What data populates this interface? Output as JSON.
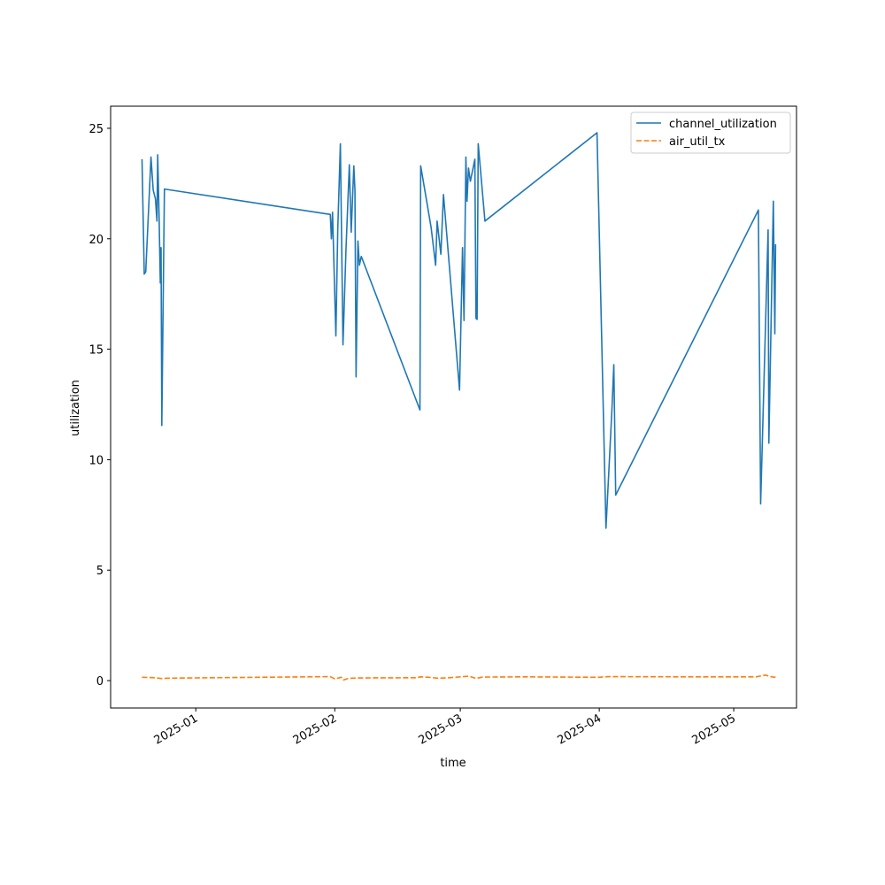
{
  "chart_data": {
    "type": "line",
    "title": "",
    "xlabel": "time",
    "ylabel": "utilization",
    "xlim": [
      "2024-12-13",
      "2025-05-15"
    ],
    "ylim": [
      -1.24,
      26.0
    ],
    "x_ticks": [
      {
        "date": "2025-01-01",
        "label": "2025-01"
      },
      {
        "date": "2025-02-01",
        "label": "2025-02"
      },
      {
        "date": "2025-03-01",
        "label": "2025-03"
      },
      {
        "date": "2025-04-01",
        "label": "2025-04"
      },
      {
        "date": "2025-05-01",
        "label": "2025-05"
      }
    ],
    "y_ticks": [
      0,
      5,
      10,
      15,
      20,
      25
    ],
    "grid": false,
    "legend": "top-right",
    "series": [
      {
        "name": "channel_utilization",
        "color": "#1f77b4",
        "style": "solid",
        "points": [
          [
            "2024-12-20T00:00",
            23.6
          ],
          [
            "2024-12-20T12:00",
            18.4
          ],
          [
            "2024-12-20T20:00",
            18.5
          ],
          [
            "2024-12-22T00:00",
            23.7
          ],
          [
            "2024-12-22T12:00",
            22.2
          ],
          [
            "2024-12-23T00:00",
            21.8
          ],
          [
            "2024-12-23T08:00",
            20.8
          ],
          [
            "2024-12-23T12:00",
            23.8
          ],
          [
            "2024-12-23T20:00",
            20.8
          ],
          [
            "2024-12-24T02:00",
            18.0
          ],
          [
            "2024-12-24T06:00",
            19.6
          ],
          [
            "2024-12-24T10:00",
            11.55
          ],
          [
            "2024-12-25T00:00",
            22.25
          ],
          [
            "2025-01-31T00:00",
            21.1
          ],
          [
            "2025-01-31T06:00",
            20.0
          ],
          [
            "2025-01-31T12:00",
            21.2
          ],
          [
            "2025-02-01T06:00",
            15.6
          ],
          [
            "2025-02-01T16:00",
            20.4
          ],
          [
            "2025-02-02T06:00",
            24.3
          ],
          [
            "2025-02-02T20:00",
            15.2
          ],
          [
            "2025-02-03T12:00",
            19.5
          ],
          [
            "2025-02-04T06:00",
            23.35
          ],
          [
            "2025-02-04T16:00",
            20.3
          ],
          [
            "2025-02-05T06:00",
            23.3
          ],
          [
            "2025-02-05T12:00",
            22.2
          ],
          [
            "2025-02-05T18:00",
            13.75
          ],
          [
            "2025-02-06T04:00",
            19.9
          ],
          [
            "2025-02-06T12:00",
            18.8
          ],
          [
            "2025-02-06T22:00",
            19.2
          ],
          [
            "2025-02-20T00:00",
            12.25
          ],
          [
            "2025-02-20T04:00",
            23.3
          ],
          [
            "2025-02-22T12:00",
            20.5
          ],
          [
            "2025-02-23T12:00",
            18.8
          ],
          [
            "2025-02-23T20:00",
            20.8
          ],
          [
            "2025-02-24T16:00",
            19.3
          ],
          [
            "2025-02-25T06:00",
            22.0
          ],
          [
            "2025-02-28T20:00",
            13.15
          ],
          [
            "2025-03-01T12:00",
            19.6
          ],
          [
            "2025-03-01T20:00",
            16.3
          ],
          [
            "2025-03-02T06:00",
            23.7
          ],
          [
            "2025-03-02T12:00",
            21.7
          ],
          [
            "2025-03-02T20:00",
            23.2
          ],
          [
            "2025-03-03T06:00",
            22.6
          ],
          [
            "2025-03-04T06:00",
            23.6
          ],
          [
            "2025-03-04T12:00",
            16.4
          ],
          [
            "2025-03-04T18:00",
            16.35
          ],
          [
            "2025-03-05T00:00",
            24.3
          ],
          [
            "2025-03-06T12:00",
            20.8
          ],
          [
            "2025-03-31T12:00",
            24.8
          ],
          [
            "2025-04-02T12:00",
            6.9
          ],
          [
            "2025-04-03T20:00",
            12.3
          ],
          [
            "2025-04-04T06:00",
            14.3
          ],
          [
            "2025-04-04T16:00",
            8.4
          ],
          [
            "2025-05-06T12:00",
            21.3
          ],
          [
            "2025-05-07T00:00",
            8.0
          ],
          [
            "2025-05-08T16:00",
            20.4
          ],
          [
            "2025-05-08T20:00",
            10.75
          ],
          [
            "2025-05-09T20:00",
            21.7
          ],
          [
            "2025-05-10T04:00",
            15.7
          ],
          [
            "2025-05-10T08:00",
            19.75
          ]
        ]
      },
      {
        "name": "air_util_tx",
        "color": "#ff7f0e",
        "style": "dashed",
        "points": [
          [
            "2024-12-20T00:00",
            0.15
          ],
          [
            "2024-12-23T00:00",
            0.13
          ],
          [
            "2024-12-24T12:00",
            0.09
          ],
          [
            "2024-12-25T12:00",
            0.11
          ],
          [
            "2025-01-31T00:00",
            0.18
          ],
          [
            "2025-02-01T00:00",
            0.08
          ],
          [
            "2025-02-02T12:00",
            0.15
          ],
          [
            "2025-02-03T00:00",
            0.03
          ],
          [
            "2025-02-04T00:00",
            0.1
          ],
          [
            "2025-02-06T00:00",
            0.12
          ],
          [
            "2025-02-19T12:00",
            0.13
          ],
          [
            "2025-02-20T00:00",
            0.17
          ],
          [
            "2025-02-22T00:00",
            0.15
          ],
          [
            "2025-02-24T00:00",
            0.11
          ],
          [
            "2025-02-26T00:00",
            0.12
          ],
          [
            "2025-03-01T00:00",
            0.17
          ],
          [
            "2025-03-03T00:00",
            0.2
          ],
          [
            "2025-03-04T12:00",
            0.1
          ],
          [
            "2025-03-06T00:00",
            0.16
          ],
          [
            "2025-03-15T00:00",
            0.17
          ],
          [
            "2025-04-01T00:00",
            0.15
          ],
          [
            "2025-04-03T00:00",
            0.18
          ],
          [
            "2025-04-20T00:00",
            0.17
          ],
          [
            "2025-05-06T00:00",
            0.17
          ],
          [
            "2025-05-08T00:00",
            0.25
          ],
          [
            "2025-05-09T12:00",
            0.17
          ],
          [
            "2025-05-10T08:00",
            0.15
          ]
        ]
      }
    ]
  }
}
